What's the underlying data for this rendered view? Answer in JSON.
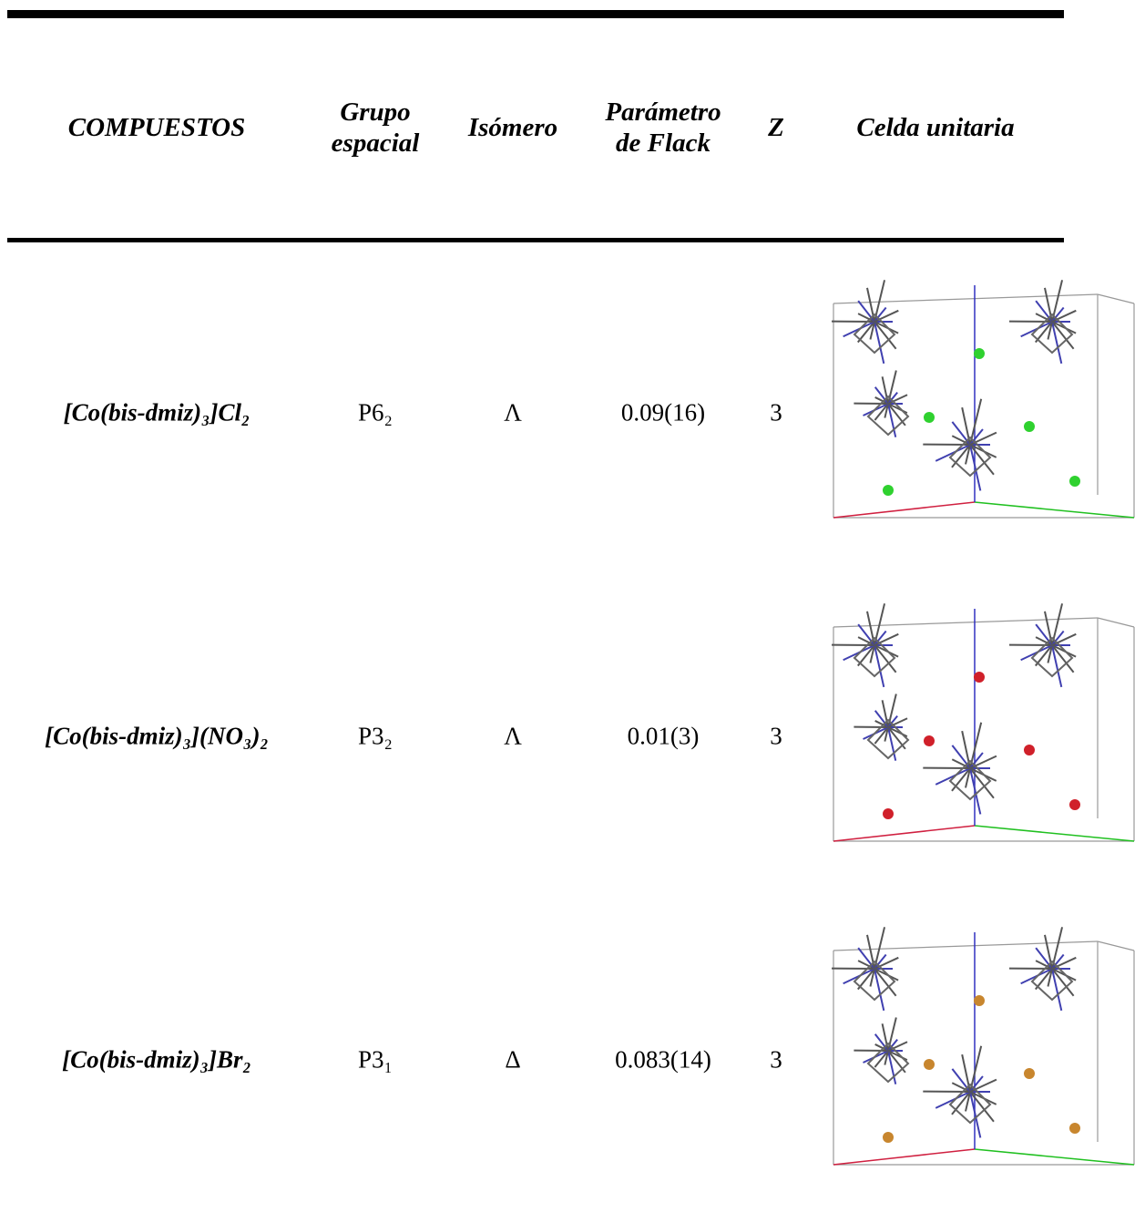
{
  "table": {
    "header": [
      [
        "COMPUESTOS"
      ],
      [
        "Grupo",
        "espacial"
      ],
      [
        "Isómero"
      ],
      [
        "Parámetro",
        "de Flack"
      ],
      [
        "Z"
      ],
      [
        "Celda unitaria"
      ]
    ],
    "rows": [
      [
        "[Co(bis-dmiz)₃]Cl₂",
        "P6₂",
        "Λ",
        "0.09(16)",
        3
      ],
      [
        "[Co(bis-dmiz)₃](NO₃)₂",
        "P3₂",
        "Λ",
        "0.01(3)",
        3
      ],
      [
        "[Co(bis-dmiz)₃]Br₂",
        "P3₁",
        "Δ",
        "0.083(14)",
        3
      ]
    ]
  }
}
